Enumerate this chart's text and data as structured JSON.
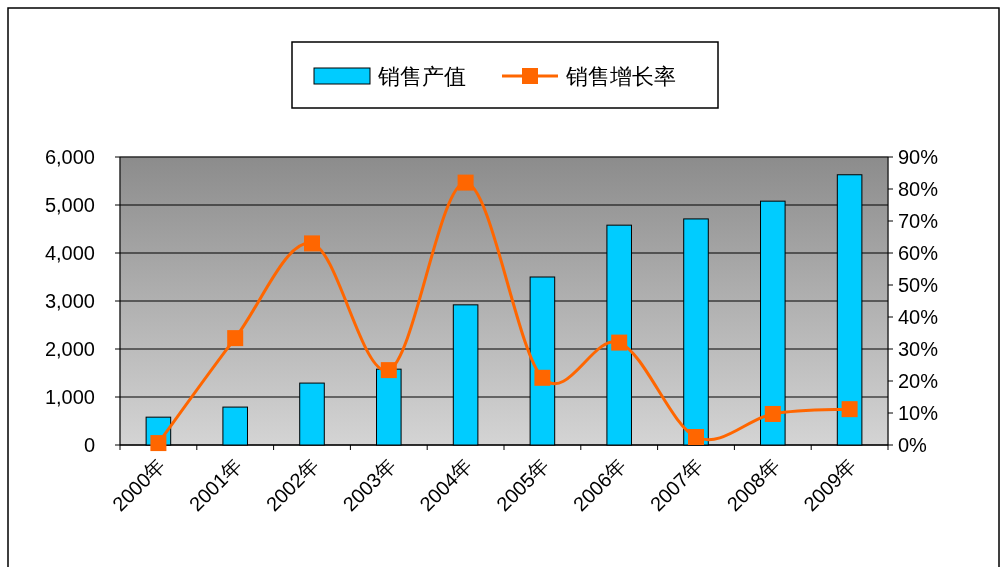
{
  "chart_data": {
    "type": "bar",
    "categories": [
      "2000年",
      "2001年",
      "2002年",
      "2003年",
      "2004年",
      "2005年",
      "2006年",
      "2007年",
      "2008年",
      "2009年"
    ],
    "series": [
      {
        "name": "销售产值",
        "color": "#00ccff",
        "values": [
          580,
          790,
          1290,
          1580,
          2920,
          3500,
          4580,
          4710,
          5080,
          5630
        ]
      },
      {
        "name": "销售增长率",
        "type": "line",
        "axis": "y2",
        "color": "#ff6600",
        "values": [
          0.6,
          33.4,
          63,
          23.4,
          82,
          21,
          32,
          2.5,
          9.7,
          11.2
        ]
      }
    ],
    "ylim": [
      0,
      6000
    ],
    "yticks": [
      {
        "value": 0,
        "label": "0"
      },
      {
        "value": 1000,
        "label": "1,000"
      },
      {
        "value": 2000,
        "label": "2,000"
      },
      {
        "value": 3000,
        "label": "3,000"
      },
      {
        "value": 4000,
        "label": "4,000"
      },
      {
        "value": 5000,
        "label": "5,000"
      },
      {
        "value": 6000,
        "label": "6,000"
      }
    ],
    "y2lim": [
      0,
      90
    ],
    "y2ticks": [
      {
        "value": 0,
        "label": "0%"
      },
      {
        "value": 10,
        "label": "10%"
      },
      {
        "value": 20,
        "label": "20%"
      },
      {
        "value": 30,
        "label": "30%"
      },
      {
        "value": 40,
        "label": "40%"
      },
      {
        "value": 50,
        "label": "50%"
      },
      {
        "value": 60,
        "label": "60%"
      },
      {
        "value": 70,
        "label": "70%"
      },
      {
        "value": 80,
        "label": "80%"
      },
      {
        "value": 90,
        "label": "90%"
      }
    ],
    "grid": "y",
    "legend": "top",
    "marker": "square"
  }
}
